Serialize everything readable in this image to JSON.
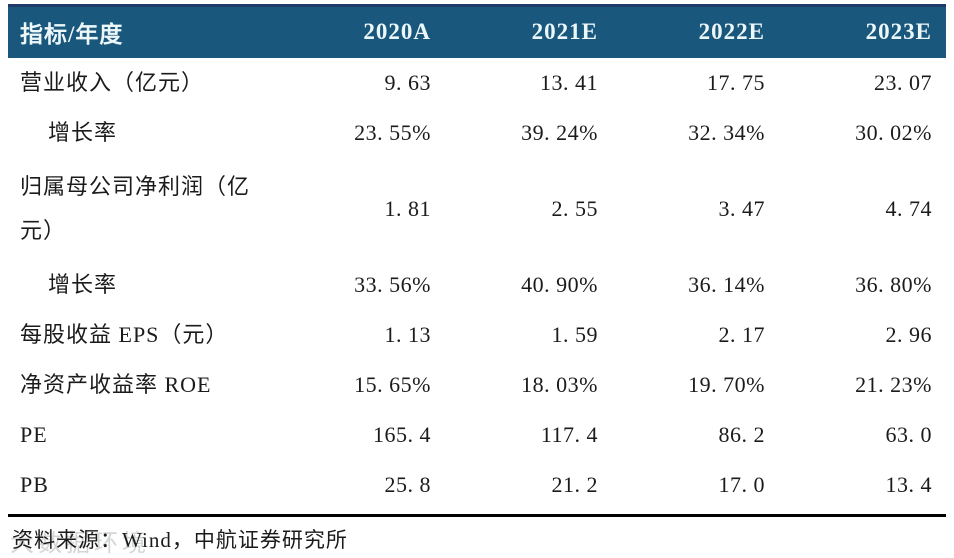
{
  "chart_data": {
    "type": "table",
    "title": "",
    "columns": [
      "指标/年度",
      "2020A",
      "2021E",
      "2022E",
      "2023E"
    ],
    "rows": [
      {
        "metric": "营业收入（亿元）",
        "indent": false,
        "cells": [
          "9. 63",
          "13. 41",
          "17. 75",
          "23. 07"
        ]
      },
      {
        "metric": "增长率",
        "indent": true,
        "cells": [
          "23. 55%",
          "39. 24%",
          "32. 34%",
          "30. 02%"
        ]
      },
      {
        "metric": "归属母公司净利润（亿元）",
        "indent": false,
        "cells": [
          "1. 81",
          "2. 55",
          "3. 47",
          "4. 74"
        ]
      },
      {
        "metric": "增长率",
        "indent": true,
        "cells": [
          "33. 56%",
          "40. 90%",
          "36. 14%",
          "36. 80%"
        ]
      },
      {
        "metric": "每股收益 EPS（元）",
        "indent": false,
        "cells": [
          "1. 13",
          "1. 59",
          "2. 17",
          "2. 96"
        ]
      },
      {
        "metric": "净资产收益率 ROE",
        "indent": false,
        "cells": [
          "15. 65%",
          "18. 03%",
          "19. 70%",
          "21. 23%"
        ]
      },
      {
        "metric": "PE",
        "indent": false,
        "cells": [
          "165. 4",
          "117. 4",
          "86. 2",
          "63. 0"
        ]
      },
      {
        "metric": "PB",
        "indent": false,
        "cells": [
          "25. 8",
          "21. 2",
          "17. 0",
          "13. 4"
        ]
      }
    ]
  },
  "footer": {
    "source": "资料来源：Wind，中航证券研究所",
    "watermark": "大数据环境"
  },
  "colors": {
    "header_bg": "#1A577C",
    "header_top_border": "#1E3B69",
    "header_text": "#ECF7FA",
    "body_text": "#1B1B1B",
    "bottom_rule": "#000000",
    "watermark_text": "#9FA4A6"
  }
}
